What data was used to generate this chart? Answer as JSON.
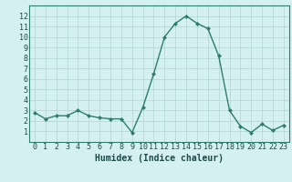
{
  "x": [
    0,
    1,
    2,
    3,
    4,
    5,
    6,
    7,
    8,
    9,
    10,
    11,
    12,
    13,
    14,
    15,
    16,
    17,
    18,
    19,
    20,
    21,
    22,
    23
  ],
  "y": [
    2.8,
    2.2,
    2.5,
    2.5,
    3.0,
    2.5,
    2.3,
    2.2,
    2.2,
    0.9,
    3.3,
    6.5,
    10.0,
    11.3,
    12.0,
    11.3,
    10.8,
    8.2,
    3.0,
    1.5,
    0.9,
    1.7,
    1.1,
    1.6
  ],
  "line_color": "#2e7d6e",
  "marker": "D",
  "marker_size": 2.0,
  "linewidth": 1.0,
  "xlabel": "Humidex (Indice chaleur)",
  "xlabel_fontsize": 7,
  "title": "",
  "xlim": [
    -0.5,
    23.5
  ],
  "ylim": [
    0,
    13
  ],
  "yticks": [
    1,
    2,
    3,
    4,
    5,
    6,
    7,
    8,
    9,
    10,
    11,
    12
  ],
  "xticks": [
    0,
    1,
    2,
    3,
    4,
    5,
    6,
    7,
    8,
    9,
    10,
    11,
    12,
    13,
    14,
    15,
    16,
    17,
    18,
    19,
    20,
    21,
    22,
    23
  ],
  "bg_color": "#d4f0f0",
  "grid_color": "#b8d8d8",
  "tick_fontsize": 6.0,
  "spine_color": "#2e7d6e"
}
